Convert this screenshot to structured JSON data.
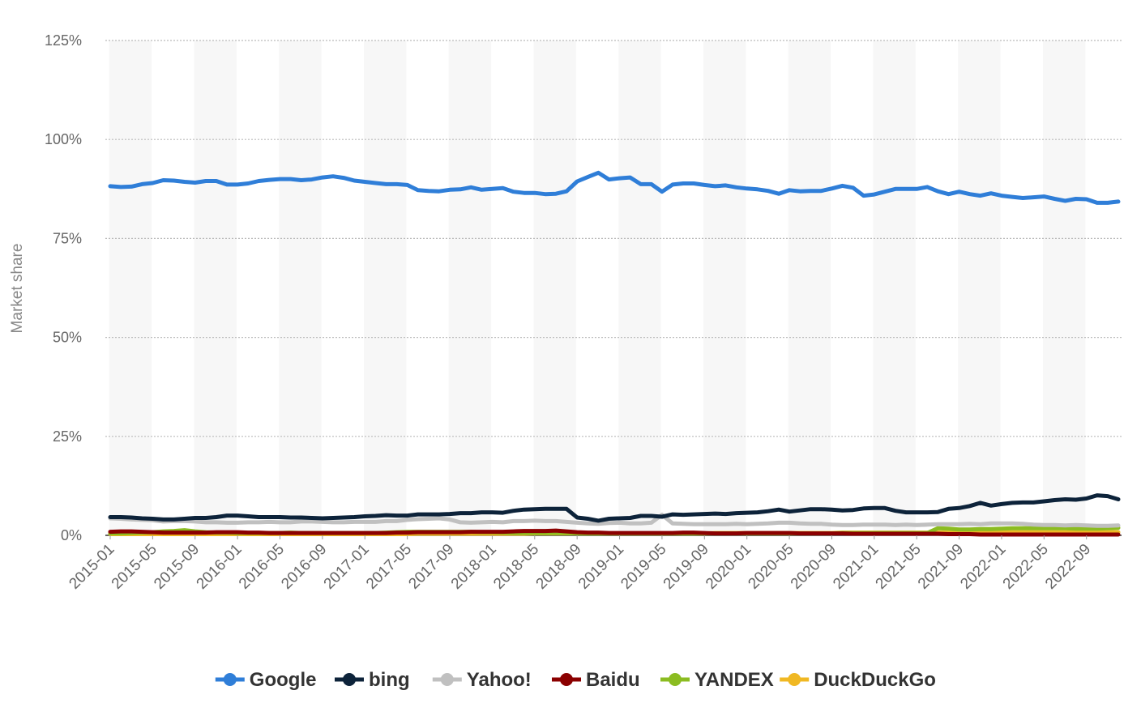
{
  "chart_data": {
    "type": "line",
    "ylabel": "Market share",
    "y_unit": "%",
    "ylim": [
      0,
      125
    ],
    "yticks": [
      0,
      25,
      50,
      75,
      100,
      125
    ],
    "ytick_labels": [
      "0%",
      "25%",
      "50%",
      "75%",
      "100%",
      "125%"
    ],
    "x_start": "2015-01",
    "x_end": "2022-12",
    "xtick_labels": [
      "2015-01",
      "2015-05",
      "2015-09",
      "2016-01",
      "2016-05",
      "2016-09",
      "2017-01",
      "2017-05",
      "2017-09",
      "2018-01",
      "2018-05",
      "2018-09",
      "2019-01",
      "2019-05",
      "2019-09",
      "2020-01",
      "2020-05",
      "2020-09",
      "2021-01",
      "2021-05",
      "2021-09",
      "2022-01",
      "2022-05",
      "2022-09"
    ],
    "grid": true,
    "legend_position": "bottom",
    "series": [
      {
        "name": "Google",
        "color": "#2f7ed8",
        "values": [
          88.2,
          88.0,
          88.1,
          88.7,
          89.0,
          89.7,
          89.6,
          89.3,
          89.1,
          89.5,
          89.5,
          88.6,
          88.6,
          88.9,
          89.5,
          89.8,
          90.0,
          90.0,
          89.7,
          89.9,
          90.4,
          90.7,
          90.3,
          89.6,
          89.3,
          89.0,
          88.7,
          88.7,
          88.5,
          87.2,
          87.0,
          86.9,
          87.3,
          87.4,
          87.9,
          87.3,
          87.5,
          87.7,
          86.8,
          86.5,
          86.5,
          86.2,
          86.3,
          86.9,
          89.4,
          90.5,
          91.6,
          89.9,
          90.2,
          90.4,
          88.7,
          88.7,
          86.8,
          88.6,
          88.9,
          88.9,
          88.5,
          88.2,
          88.4,
          87.9,
          87.6,
          87.4,
          87.0,
          86.3,
          87.2,
          86.9,
          87.0,
          87.0,
          87.6,
          88.3,
          87.8,
          85.8,
          86.1,
          86.8,
          87.5,
          87.5,
          87.5,
          88.0,
          86.9,
          86.2,
          86.8,
          86.2,
          85.8,
          86.4,
          85.8,
          85.5,
          85.2,
          85.4,
          85.6,
          85.0,
          84.5,
          85.0,
          84.9,
          84.0,
          84.0,
          84.3
        ]
      },
      {
        "name": "bing",
        "color": "#0d233a",
        "values": [
          4.6,
          4.6,
          4.5,
          4.3,
          4.2,
          4.0,
          4.0,
          4.2,
          4.4,
          4.4,
          4.6,
          5.0,
          5.0,
          4.8,
          4.6,
          4.6,
          4.6,
          4.5,
          4.5,
          4.4,
          4.3,
          4.4,
          4.5,
          4.6,
          4.8,
          4.9,
          5.1,
          5.0,
          5.0,
          5.3,
          5.3,
          5.3,
          5.4,
          5.6,
          5.6,
          5.8,
          5.8,
          5.7,
          6.2,
          6.5,
          6.6,
          6.7,
          6.7,
          6.7,
          4.5,
          4.2,
          3.7,
          4.2,
          4.3,
          4.4,
          4.9,
          4.9,
          4.7,
          5.3,
          5.2,
          5.3,
          5.4,
          5.5,
          5.4,
          5.6,
          5.7,
          5.8,
          6.1,
          6.5,
          6.0,
          6.3,
          6.6,
          6.6,
          6.5,
          6.3,
          6.4,
          6.8,
          6.9,
          6.9,
          6.2,
          5.8,
          5.8,
          5.8,
          5.9,
          6.7,
          6.9,
          7.4,
          8.2,
          7.5,
          7.9,
          8.2,
          8.3,
          8.3,
          8.6,
          8.9,
          9.1,
          9.0,
          9.3,
          10.1,
          9.9,
          9.1
        ]
      },
      {
        "name": "Yahoo!",
        "color": "#c0c0c0",
        "values": [
          4.3,
          4.2,
          4.0,
          3.9,
          3.8,
          3.5,
          3.6,
          3.6,
          3.5,
          3.3,
          3.3,
          3.2,
          3.2,
          3.3,
          3.3,
          3.4,
          3.3,
          3.3,
          3.5,
          3.5,
          3.4,
          3.3,
          3.3,
          3.4,
          3.4,
          3.4,
          3.6,
          3.6,
          3.9,
          4.1,
          4.2,
          4.3,
          4.0,
          3.3,
          3.2,
          3.3,
          3.4,
          3.3,
          3.6,
          3.6,
          3.7,
          3.6,
          3.6,
          3.4,
          3.2,
          3.0,
          2.9,
          3.1,
          3.2,
          3.0,
          3.0,
          3.2,
          5.2,
          3.0,
          2.9,
          2.8,
          2.8,
          2.8,
          2.8,
          2.9,
          2.8,
          2.9,
          3.0,
          3.2,
          3.2,
          3.0,
          2.9,
          2.9,
          2.7,
          2.6,
          2.6,
          2.7,
          2.7,
          2.7,
          2.6,
          2.7,
          2.6,
          2.7,
          2.8,
          2.8,
          2.8,
          2.9,
          2.8,
          3.0,
          3.0,
          3.0,
          2.9,
          2.7,
          2.6,
          2.6,
          2.5,
          2.6,
          2.5,
          2.4,
          2.4,
          2.5
        ]
      },
      {
        "name": "Baidu",
        "color": "#8b0000",
        "values": [
          0.9,
          1.0,
          1.0,
          0.9,
          0.8,
          0.7,
          0.7,
          0.7,
          0.7,
          0.7,
          0.8,
          0.8,
          0.8,
          0.7,
          0.7,
          0.6,
          0.6,
          0.6,
          0.6,
          0.6,
          0.6,
          0.6,
          0.6,
          0.6,
          0.6,
          0.6,
          0.6,
          0.7,
          0.7,
          0.8,
          0.8,
          0.8,
          0.8,
          0.8,
          0.9,
          0.9,
          0.9,
          0.9,
          1.0,
          1.1,
          1.1,
          1.1,
          1.2,
          1.0,
          0.8,
          0.7,
          0.7,
          0.6,
          0.6,
          0.6,
          0.6,
          0.6,
          0.6,
          0.6,
          0.7,
          0.7,
          0.6,
          0.5,
          0.5,
          0.5,
          0.6,
          0.6,
          0.6,
          0.6,
          0.6,
          0.5,
          0.5,
          0.5,
          0.5,
          0.5,
          0.4,
          0.4,
          0.4,
          0.4,
          0.4,
          0.4,
          0.4,
          0.4,
          0.4,
          0.3,
          0.3,
          0.3,
          0.2,
          0.2,
          0.2,
          0.2,
          0.2,
          0.2,
          0.2,
          0.2,
          0.2,
          0.2,
          0.2,
          0.2,
          0.2,
          0.2
        ]
      },
      {
        "name": "YANDEX",
        "color": "#8bbc21",
        "values": [
          0.5,
          0.5,
          0.6,
          0.7,
          0.8,
          1.0,
          1.1,
          1.3,
          1.0,
          0.8,
          0.7,
          0.7,
          0.6,
          0.6,
          0.6,
          0.6,
          0.6,
          0.7,
          0.6,
          0.6,
          0.6,
          0.6,
          0.6,
          0.6,
          0.6,
          0.6,
          0.7,
          0.8,
          0.9,
          0.9,
          0.9,
          0.9,
          0.9,
          0.9,
          0.9,
          0.8,
          0.8,
          0.7,
          0.6,
          0.6,
          0.6,
          0.6,
          0.6,
          0.6,
          0.5,
          0.5,
          0.5,
          0.5,
          0.5,
          0.5,
          0.5,
          0.5,
          0.5,
          0.5,
          0.5,
          0.5,
          0.5,
          0.5,
          0.5,
          0.5,
          0.5,
          0.5,
          0.5,
          0.5,
          0.5,
          0.5,
          0.5,
          0.5,
          0.5,
          0.6,
          0.6,
          0.6,
          0.6,
          0.6,
          0.6,
          0.6,
          0.6,
          0.6,
          1.8,
          1.7,
          1.5,
          1.5,
          1.6,
          1.6,
          1.7,
          1.8,
          1.8,
          1.8,
          1.8,
          1.8,
          1.8,
          1.7,
          1.7,
          1.7,
          1.8,
          1.9
        ]
      },
      {
        "name": "DuckDuckGo",
        "color": "#f0b823",
        "values": [
          0.3,
          0.3,
          0.3,
          0.3,
          0.3,
          0.3,
          0.3,
          0.3,
          0.3,
          0.3,
          0.3,
          0.3,
          0.3,
          0.3,
          0.3,
          0.3,
          0.3,
          0.3,
          0.3,
          0.3,
          0.3,
          0.3,
          0.3,
          0.3,
          0.3,
          0.3,
          0.3,
          0.3,
          0.3,
          0.4,
          0.4,
          0.4,
          0.4,
          0.4,
          0.4,
          0.4,
          0.4,
          0.4,
          0.4,
          0.4,
          0.5,
          0.5,
          0.5,
          0.5,
          0.5,
          0.5,
          0.5,
          0.5,
          0.5,
          0.5,
          0.5,
          0.5,
          0.5,
          0.5,
          0.5,
          0.5,
          0.5,
          0.6,
          0.6,
          0.6,
          0.6,
          0.6,
          0.6,
          0.6,
          0.6,
          0.6,
          0.6,
          0.6,
          0.6,
          0.7,
          0.7,
          0.7,
          0.7,
          0.7,
          0.7,
          0.7,
          0.7,
          0.7,
          0.7,
          0.7,
          0.7,
          0.7,
          0.8,
          0.8,
          0.8,
          0.8,
          0.8,
          0.8,
          0.8,
          0.8,
          0.8,
          0.8,
          0.8,
          0.8,
          0.8,
          0.8
        ]
      }
    ]
  }
}
